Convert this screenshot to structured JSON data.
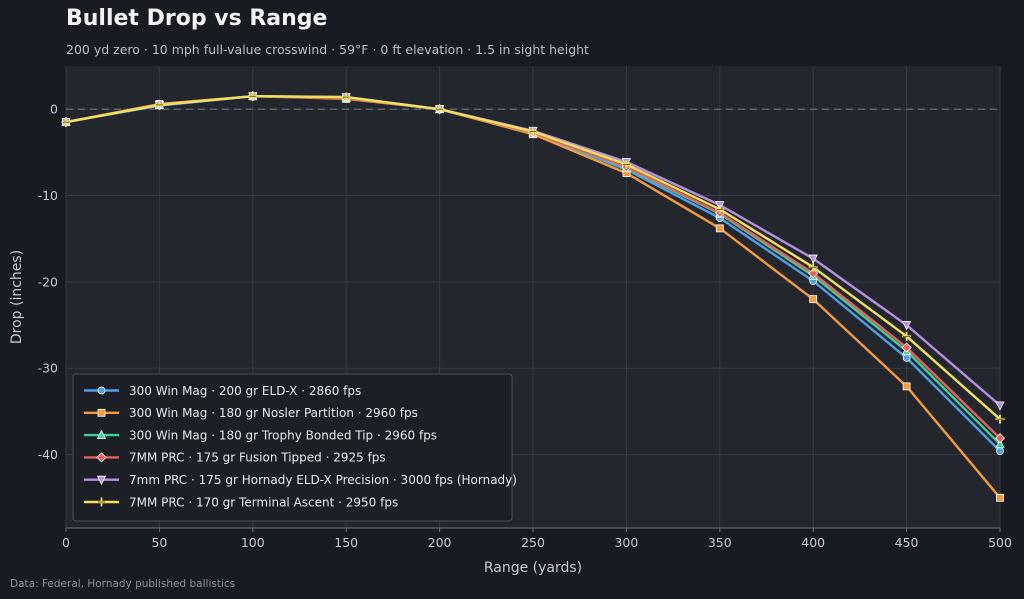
{
  "title": "Bullet Drop vs Range",
  "subtitle": "200 yd zero  ·  10 mph full-value crosswind  ·  59°F  ·  0 ft elevation  ·  1.5 in sight height",
  "footer": "Data: Federal, Hornady published ballistics",
  "chart_data": {
    "type": "line",
    "title": "Bullet Drop vs Range",
    "xlabel": "Range (yards)",
    "ylabel": "Drop (inches)",
    "xlim": [
      0,
      500
    ],
    "ylim": [
      -48.5,
      5
    ],
    "xticks": [
      0,
      50,
      100,
      150,
      200,
      250,
      300,
      350,
      400,
      450,
      500
    ],
    "yticks": [
      0,
      -10,
      -20,
      -30,
      -40
    ],
    "grid": true,
    "reference_line": 0,
    "legend_position": "lower-left",
    "x": [
      0,
      50,
      100,
      150,
      200,
      250,
      300,
      350,
      400,
      450,
      500
    ],
    "series": [
      {
        "name": "300 Win Mag · 200 gr ELD-X · 2860 fps",
        "color": "#4f9fea",
        "marker": "circle",
        "values": [
          -1.5,
          0.4,
          1.5,
          1.3,
          0.0,
          -2.8,
          -7.0,
          -12.6,
          -19.9,
          -28.8,
          -39.6
        ]
      },
      {
        "name": "300 Win Mag · 180 gr Nosler Partition · 2960 fps",
        "color": "#f39a3c",
        "marker": "square",
        "values": [
          -1.5,
          0.6,
          1.5,
          1.2,
          0.0,
          -2.9,
          -7.4,
          -13.8,
          -22.0,
          -32.1,
          -45.0
        ]
      },
      {
        "name": "300 Win Mag · 180 gr Trophy Bonded Tip · 2960 fps",
        "color": "#3ecf9b",
        "marker": "triangle-up",
        "values": [
          -1.5,
          0.5,
          1.5,
          1.3,
          0.0,
          -2.7,
          -6.8,
          -12.1,
          -19.3,
          -28.0,
          -38.8
        ]
      },
      {
        "name": "7MM PRC · 175 gr Fusion Tipped · 2925 fps",
        "color": "#e5625c",
        "marker": "diamond",
        "values": [
          -1.5,
          0.5,
          1.5,
          1.3,
          0.0,
          -2.7,
          -6.7,
          -12.0,
          -19.0,
          -27.6,
          -38.1
        ]
      },
      {
        "name": "7mm PRC · 175 gr Hornady ELD-X Precision · 3000 fps (Hornady)",
        "color": "#b58fe0",
        "marker": "triangle-down",
        "values": [
          -1.5,
          0.5,
          1.5,
          1.4,
          0.0,
          -2.5,
          -6.1,
          -11.1,
          -17.3,
          -25.0,
          -34.3
        ]
      },
      {
        "name": "7MM PRC · 170 gr Terminal Ascent · 2950 fps",
        "color": "#f1e15b",
        "marker": "plus",
        "values": [
          -1.5,
          0.5,
          1.5,
          1.4,
          0.0,
          -2.6,
          -6.4,
          -11.6,
          -18.3,
          -26.3,
          -35.9
        ]
      }
    ]
  }
}
